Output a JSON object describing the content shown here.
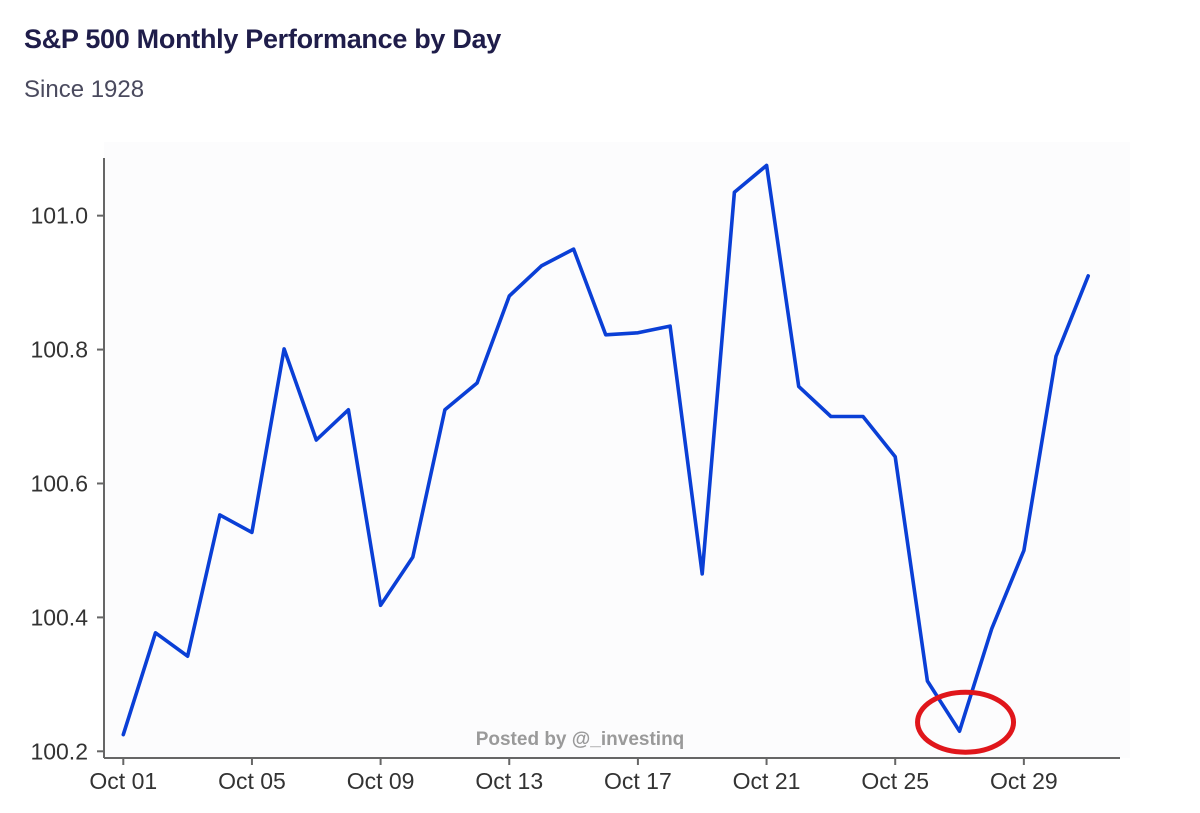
{
  "header": {
    "title": "S&P 500 Monthly Performance by Day",
    "subtitle": "Since 1928"
  },
  "watermark": "Posted by @_investinq",
  "colors": {
    "line": "#0a3fd6",
    "highlight": "#e0161b",
    "axis": "#666666",
    "plot_bg": "#fcfcfd"
  },
  "chart_data": {
    "type": "line",
    "title": "S&P 500 Monthly Performance by Day",
    "subtitle": "Since 1928",
    "xlabel": "",
    "ylabel": "",
    "x": [
      1,
      2,
      3,
      4,
      5,
      6,
      7,
      8,
      9,
      10,
      11,
      12,
      13,
      14,
      15,
      16,
      17,
      18,
      19,
      20,
      21,
      22,
      23,
      24,
      25,
      26,
      27,
      28,
      29,
      30,
      31
    ],
    "x_tick_values": [
      1,
      5,
      9,
      13,
      17,
      21,
      25,
      29
    ],
    "x_tick_labels": [
      "Oct 01",
      "Oct 05",
      "Oct 09",
      "Oct 13",
      "Oct 17",
      "Oct 21",
      "Oct 25",
      "Oct 29"
    ],
    "y_ticks": [
      100.2,
      100.4,
      100.6,
      100.8,
      101.0
    ],
    "y_tick_labels": [
      "100.2",
      "100.4",
      "100.6",
      "100.8",
      "101.0"
    ],
    "ylim": [
      100.19,
      101.11
    ],
    "xlim": [
      0.4,
      32.3
    ],
    "grid": false,
    "series": [
      {
        "values": [
          100.225,
          100.377,
          100.342,
          100.553,
          100.527,
          100.801,
          100.665,
          100.71,
          100.418,
          100.49,
          100.71,
          100.75,
          100.88,
          100.925,
          100.95,
          100.822,
          100.825,
          100.835,
          100.465,
          101.035,
          101.075,
          100.745,
          100.7,
          100.7,
          100.64,
          100.305,
          100.23,
          100.383,
          100.5,
          100.79,
          100.91
        ]
      }
    ],
    "annotations": [
      {
        "type": "circle",
        "x": 27,
        "y": 100.23,
        "color": "#e0161b"
      }
    ]
  }
}
